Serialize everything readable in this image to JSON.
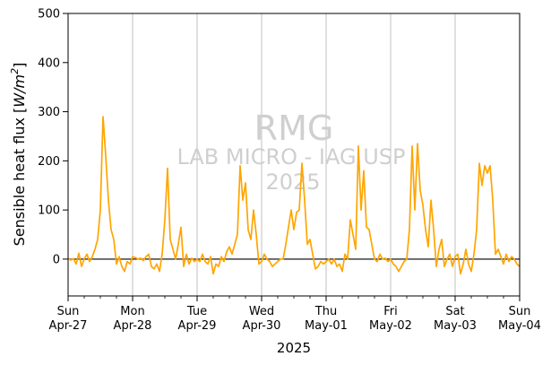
{
  "chart_data": {
    "type": "line",
    "title": "",
    "xlabel": "2025",
    "ylabel": "Sensible heat flux [W/m²]",
    "ylabel_parts": [
      "Sensible heat flux [",
      "W/m",
      "2",
      "]"
    ],
    "ylim": [
      -75,
      500
    ],
    "yticks": [
      0,
      100,
      200,
      300,
      400,
      500
    ],
    "xlim": [
      "2025-04-27 00:00",
      "2025-05-04 00:00"
    ],
    "xticks": [
      {
        "day": "Sun",
        "date": "Apr-27"
      },
      {
        "day": "Mon",
        "date": "Apr-28"
      },
      {
        "day": "Tue",
        "date": "Apr-29"
      },
      {
        "day": "Wed",
        "date": "Apr-30"
      },
      {
        "day": "Thu",
        "date": "May-01"
      },
      {
        "day": "Fri",
        "date": "May-02"
      },
      {
        "day": "Sat",
        "date": "May-03"
      },
      {
        "day": "Sun",
        "date": "May-04"
      }
    ],
    "grid": "vertical at day ticks",
    "reference_line": 0,
    "series_color": "#ffa500",
    "watermark": [
      "RMG",
      "LAB MICRO - IAG USP",
      "2025"
    ],
    "series": [
      {
        "x_unit": "hours since 2025-04-27 00:00",
        "x": [
          0,
          1,
          2,
          3,
          4,
          5,
          6,
          7,
          8,
          9,
          10,
          11,
          12,
          13,
          14,
          15,
          16,
          17,
          18,
          19,
          20,
          21,
          22,
          23,
          24,
          25,
          26,
          27,
          28,
          29,
          30,
          31,
          32,
          33,
          34,
          35,
          36,
          37,
          38,
          39,
          40,
          41,
          42,
          43,
          44,
          45,
          46,
          47,
          48,
          49,
          50,
          51,
          52,
          53,
          54,
          55,
          56,
          57,
          58,
          59,
          60,
          61,
          62,
          63,
          64,
          65,
          66,
          67,
          68,
          69,
          70,
          71,
          72,
          73,
          74,
          75,
          76,
          77,
          78,
          79,
          80,
          81,
          82,
          83,
          84,
          85,
          86,
          87,
          88,
          89,
          90,
          91,
          92,
          93,
          94,
          95,
          96,
          97,
          98,
          99,
          100,
          101,
          102,
          103,
          104,
          105,
          106,
          107,
          108,
          109,
          110,
          111,
          112,
          113,
          114,
          115,
          116,
          117,
          118,
          119,
          120,
          121,
          122,
          123,
          124,
          125,
          126,
          127,
          128,
          129,
          130,
          131,
          132,
          133,
          134,
          135,
          136,
          137,
          138,
          139,
          140,
          141,
          142,
          143,
          144,
          145,
          146,
          147,
          148,
          149,
          150,
          151,
          152,
          153,
          154,
          155,
          156,
          157,
          158,
          159,
          160,
          161,
          162,
          163,
          164,
          165,
          166,
          167,
          168
        ],
        "y": [
          2,
          -2,
          1,
          -10,
          12,
          -15,
          0,
          10,
          -5,
          5,
          20,
          40,
          100,
          290,
          210,
          120,
          60,
          40,
          -10,
          5,
          -15,
          -25,
          -5,
          -10,
          5,
          3,
          0,
          2,
          -3,
          5,
          10,
          -15,
          -20,
          -10,
          -25,
          10,
          80,
          185,
          40,
          20,
          0,
          30,
          65,
          -15,
          10,
          -10,
          2,
          -5,
          0,
          -5,
          10,
          -5,
          -10,
          5,
          -30,
          -10,
          -15,
          5,
          -5,
          15,
          25,
          10,
          30,
          50,
          190,
          120,
          155,
          60,
          40,
          100,
          50,
          -10,
          -5,
          10,
          0,
          -5,
          -15,
          -10,
          -5,
          0,
          0,
          30,
          65,
          100,
          60,
          95,
          100,
          195,
          120,
          30,
          40,
          10,
          -20,
          -15,
          -5,
          -10,
          -5,
          0,
          -10,
          0,
          -15,
          -10,
          -25,
          10,
          0,
          80,
          50,
          20,
          230,
          100,
          180,
          65,
          60,
          30,
          0,
          -5,
          10,
          0,
          2,
          -5,
          0,
          -10,
          -15,
          -25,
          -15,
          -5,
          0,
          60,
          230,
          100,
          235,
          140,
          110,
          60,
          25,
          120,
          60,
          -15,
          20,
          40,
          -15,
          0,
          10,
          -15,
          5,
          10,
          -30,
          -10,
          20,
          -10,
          -25,
          10,
          60,
          195,
          150,
          190,
          175,
          190,
          120,
          10,
          20,
          5,
          -10,
          10,
          -5,
          5,
          0,
          -10,
          -15
        ]
      }
    ]
  }
}
